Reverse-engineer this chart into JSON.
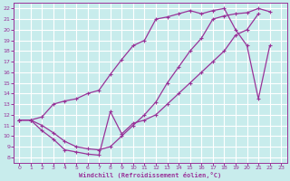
{
  "xlabel": "Windchill (Refroidissement éolien,°C)",
  "bg_color": "#c8ecec",
  "grid_color": "#ffffff",
  "line_color": "#993399",
  "xlim": [
    -0.5,
    23.5
  ],
  "ylim": [
    7.5,
    22.5
  ],
  "xticks": [
    0,
    1,
    2,
    3,
    4,
    5,
    6,
    7,
    8,
    9,
    10,
    11,
    12,
    13,
    14,
    15,
    16,
    17,
    18,
    19,
    20,
    21,
    22,
    23
  ],
  "yticks": [
    8,
    9,
    10,
    11,
    12,
    13,
    14,
    15,
    16,
    17,
    18,
    19,
    20,
    21,
    22
  ],
  "line1_x": [
    0,
    1,
    2,
    3,
    4,
    5,
    6,
    7,
    8,
    9,
    10,
    11,
    12,
    13,
    14,
    15,
    16,
    17,
    18,
    19,
    20,
    21
  ],
  "line1_y": [
    11.5,
    11.5,
    10.5,
    9.7,
    8.7,
    8.5,
    8.3,
    8.2,
    12.3,
    10.2,
    11.2,
    11.5,
    12.0,
    13.0,
    14.0,
    15.0,
    16.0,
    17.0,
    18.0,
    19.5,
    20.0,
    21.5
  ],
  "line2_x": [
    0,
    1,
    2,
    3,
    4,
    5,
    6,
    7,
    8,
    9,
    10,
    11,
    12,
    13,
    14,
    15,
    16,
    17,
    18,
    19,
    20,
    21,
    22
  ],
  "line2_y": [
    11.5,
    11.5,
    11.0,
    10.3,
    9.5,
    9.0,
    8.8,
    8.7,
    9.0,
    10.0,
    11.0,
    12.0,
    13.2,
    15.0,
    16.5,
    18.0,
    19.2,
    21.0,
    21.3,
    21.5,
    21.6,
    22.0,
    21.7
  ],
  "line3_x": [
    0,
    1,
    2,
    3,
    4,
    5,
    6,
    7,
    8,
    9,
    10,
    11,
    12,
    13,
    14,
    15,
    16,
    17,
    18,
    19,
    20,
    21,
    22
  ],
  "line3_y": [
    11.5,
    11.5,
    11.8,
    13.0,
    13.3,
    13.5,
    14.0,
    14.3,
    15.8,
    17.2,
    18.5,
    19.0,
    21.0,
    21.2,
    21.5,
    21.8,
    21.5,
    21.8,
    22.0,
    20.0,
    18.5,
    13.5,
    18.5
  ]
}
